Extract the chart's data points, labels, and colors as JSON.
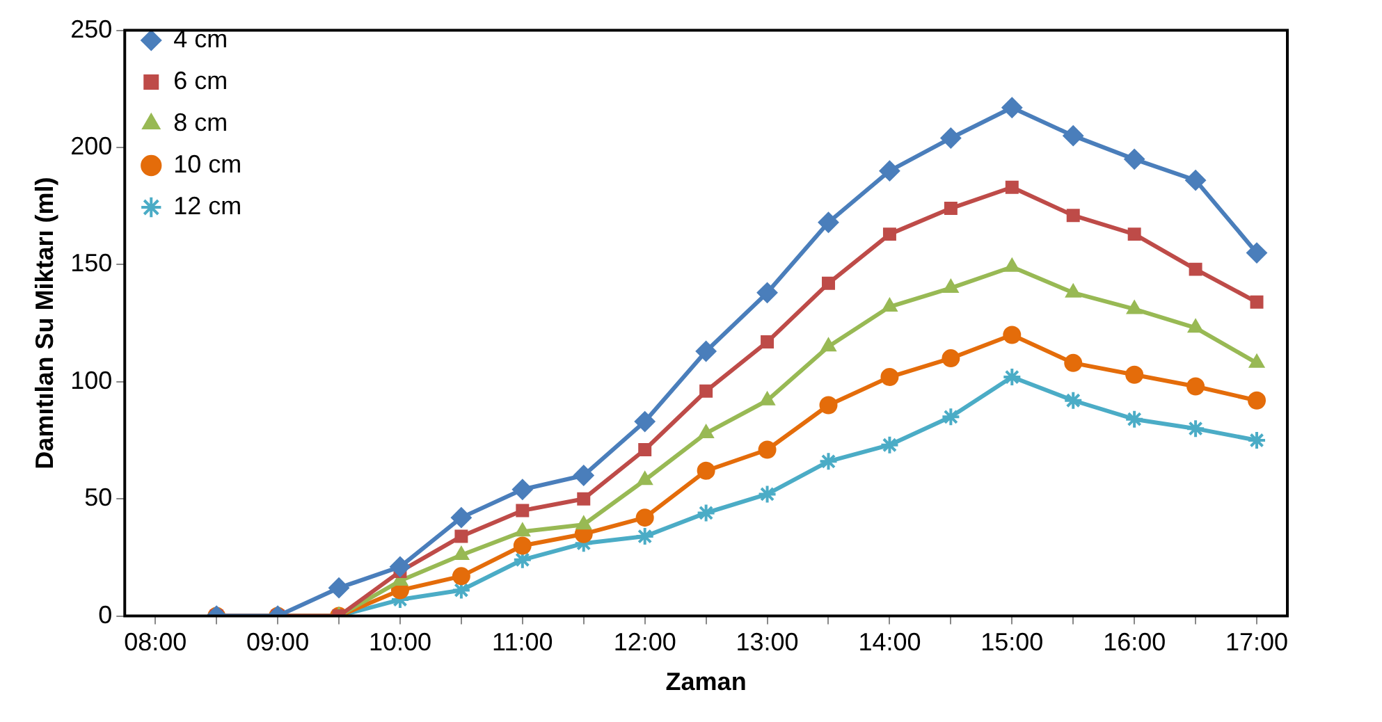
{
  "chart_data": {
    "type": "line",
    "xlabel": "Zaman",
    "ylabel": "Damıtılan Su Miktarı (ml)",
    "x": [
      8.5,
      9,
      9.5,
      10,
      10.5,
      11,
      11.5,
      12,
      12.5,
      13,
      13.5,
      14,
      14.5,
      15,
      15.5,
      16,
      16.5,
      17
    ],
    "xlim": [
      7.75,
      17.25
    ],
    "xticks": [
      {
        "value": 8,
        "label": "08:00"
      },
      {
        "value": 8.5,
        "label": null
      },
      {
        "value": 9,
        "label": "09:00"
      },
      {
        "value": 9.5,
        "label": null
      },
      {
        "value": 10,
        "label": "10:00"
      },
      {
        "value": 10.5,
        "label": null
      },
      {
        "value": 11,
        "label": "11:00"
      },
      {
        "value": 11.5,
        "label": null
      },
      {
        "value": 12,
        "label": "12:00"
      },
      {
        "value": 12.5,
        "label": null
      },
      {
        "value": 13,
        "label": "13:00"
      },
      {
        "value": 13.5,
        "label": null
      },
      {
        "value": 14,
        "label": "14:00"
      },
      {
        "value": 14.5,
        "label": null
      },
      {
        "value": 15,
        "label": "15:00"
      },
      {
        "value": 15.5,
        "label": null
      },
      {
        "value": 16,
        "label": "16:00"
      },
      {
        "value": 16.5,
        "label": null
      },
      {
        "value": 17,
        "label": "17:00"
      }
    ],
    "ylim": [
      0,
      250
    ],
    "yticks": [
      0,
      50,
      100,
      150,
      200,
      250
    ],
    "grid": false,
    "legend": "top left",
    "line_style": "solid",
    "series": [
      {
        "name": "4 cm",
        "color": "#4a7ebb",
        "marker": "diamond",
        "values": [
          0,
          0,
          12,
          21,
          42,
          54,
          60,
          83,
          113,
          138,
          168,
          190,
          204,
          217,
          205,
          195,
          186,
          155
        ]
      },
      {
        "name": "6 cm",
        "color": "#be4b48",
        "marker": "square",
        "values": [
          0,
          0,
          0,
          19,
          34,
          45,
          50,
          71,
          96,
          117,
          142,
          163,
          174,
          183,
          171,
          163,
          148,
          134
        ]
      },
      {
        "name": "8 cm",
        "color": "#98b954",
        "marker": "triangle",
        "values": [
          0,
          0,
          0,
          15,
          26,
          36,
          39,
          58,
          78,
          92,
          115,
          132,
          140,
          149,
          138,
          131,
          123,
          108
        ]
      },
      {
        "name": "10 cm",
        "color": "#e46c0a",
        "marker": "circle",
        "values": [
          0,
          0,
          0,
          11,
          17,
          30,
          35,
          42,
          62,
          71,
          90,
          102,
          110,
          120,
          108,
          103,
          98,
          92
        ]
      },
      {
        "name": "12 cm",
        "color": "#4bacc6",
        "marker": "cross",
        "values": [
          0,
          0,
          0,
          7,
          11,
          24,
          31,
          34,
          44,
          52,
          66,
          73,
          85,
          102,
          92,
          84,
          80,
          75
        ]
      }
    ]
  }
}
